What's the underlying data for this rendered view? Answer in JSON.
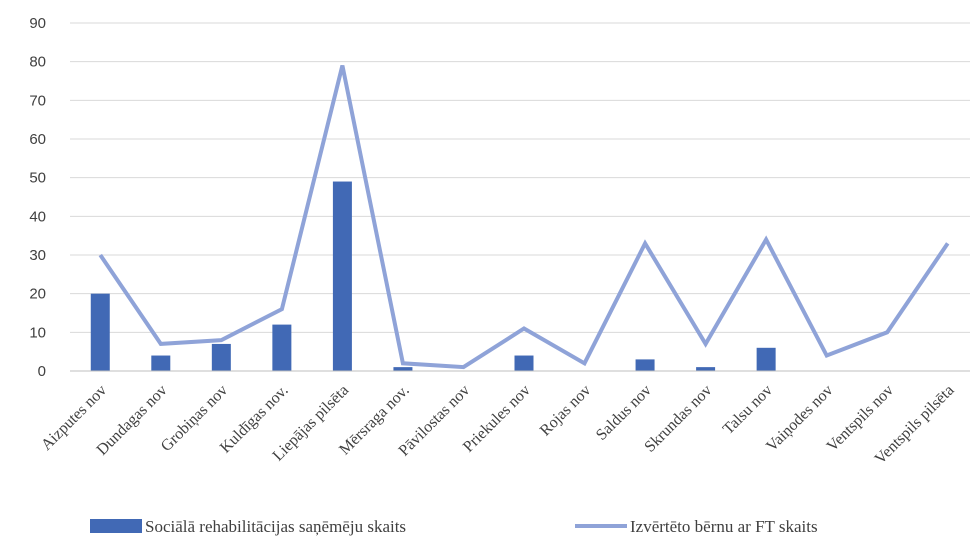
{
  "chart_data": {
    "type": "bar",
    "categories": [
      "Aizputes nov",
      "Dundagas nov",
      "Grobiņas nov",
      "Kuldīgas nov.",
      "Liepājas pilsēta",
      "Mērsraga nov.",
      "Pāvilostas nov",
      "Priekules nov",
      "Rojas nov",
      "Saldus nov",
      "Skrundas nov",
      "Talsu nov",
      "Vaiņodes nov",
      "Ventspils nov",
      "Ventspils pilsēta"
    ],
    "series": [
      {
        "name": "Sociālā rehabilitācijas saņēmēju skaits",
        "kind": "bar",
        "color": "#4169b5",
        "values": [
          20,
          4,
          7,
          12,
          49,
          1,
          0,
          4,
          0,
          3,
          1,
          6,
          0,
          0,
          0
        ]
      },
      {
        "name": "Izvērtēto bērnu ar FT skaits",
        "kind": "line",
        "color": "#8fa3d8",
        "values": [
          30,
          7,
          8,
          16,
          79,
          2,
          1,
          11,
          2,
          33,
          7,
          34,
          4,
          10,
          33
        ]
      }
    ],
    "y_ticks": [
      "0",
      "10",
      "20",
      "30",
      "40",
      "50",
      "60",
      "70",
      "80",
      "90"
    ],
    "ylim": [
      0,
      90
    ],
    "grid": true,
    "legend_position": "bottom"
  }
}
